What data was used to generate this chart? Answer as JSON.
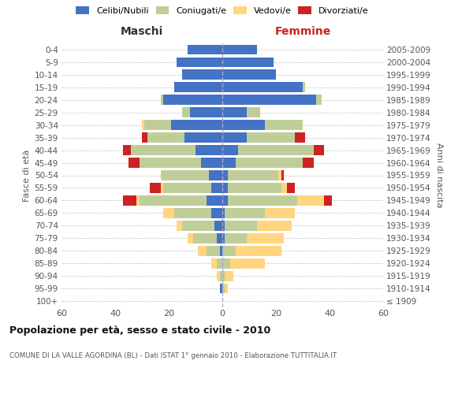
{
  "age_groups": [
    "100+",
    "95-99",
    "90-94",
    "85-89",
    "80-84",
    "75-79",
    "70-74",
    "65-69",
    "60-64",
    "55-59",
    "50-54",
    "45-49",
    "40-44",
    "35-39",
    "30-34",
    "25-29",
    "20-24",
    "15-19",
    "10-14",
    "5-9",
    "0-4"
  ],
  "birth_years": [
    "≤ 1909",
    "1910-1914",
    "1915-1919",
    "1920-1924",
    "1925-1929",
    "1930-1934",
    "1935-1939",
    "1940-1944",
    "1945-1949",
    "1950-1954",
    "1955-1959",
    "1960-1964",
    "1965-1969",
    "1970-1974",
    "1975-1979",
    "1980-1984",
    "1985-1989",
    "1990-1994",
    "1995-1999",
    "2000-2004",
    "2005-2009"
  ],
  "male": {
    "celibi": [
      0,
      1,
      0,
      0,
      1,
      2,
      3,
      4,
      6,
      4,
      5,
      8,
      10,
      14,
      19,
      12,
      22,
      18,
      15,
      17,
      13
    ],
    "coniugati": [
      0,
      0,
      1,
      2,
      5,
      9,
      12,
      14,
      25,
      18,
      18,
      23,
      24,
      14,
      10,
      3,
      1,
      0,
      0,
      0,
      0
    ],
    "vedovi": [
      0,
      0,
      1,
      2,
      3,
      2,
      2,
      4,
      1,
      1,
      0,
      0,
      0,
      0,
      1,
      0,
      0,
      0,
      0,
      0,
      0
    ],
    "divorziati": [
      0,
      0,
      0,
      0,
      0,
      0,
      0,
      0,
      5,
      4,
      0,
      4,
      3,
      2,
      0,
      0,
      0,
      0,
      0,
      0,
      0
    ]
  },
  "female": {
    "nubili": [
      0,
      0,
      0,
      0,
      0,
      1,
      1,
      1,
      2,
      2,
      2,
      5,
      6,
      9,
      16,
      9,
      35,
      30,
      20,
      19,
      13
    ],
    "coniugate": [
      0,
      1,
      1,
      3,
      5,
      8,
      12,
      15,
      26,
      20,
      19,
      25,
      28,
      18,
      14,
      5,
      2,
      1,
      0,
      0,
      0
    ],
    "vedove": [
      0,
      1,
      3,
      13,
      17,
      14,
      13,
      11,
      10,
      2,
      1,
      0,
      0,
      0,
      0,
      0,
      0,
      0,
      0,
      0,
      0
    ],
    "divorziate": [
      0,
      0,
      0,
      0,
      0,
      0,
      0,
      0,
      3,
      3,
      1,
      4,
      4,
      4,
      0,
      0,
      0,
      0,
      0,
      0,
      0
    ]
  },
  "colors": {
    "celibi": "#4472C4",
    "coniugati": "#BFCE99",
    "vedovi": "#FFD580",
    "divorziati": "#CC2222"
  },
  "xlim": 60,
  "title": "Popolazione per età, sesso e stato civile - 2010",
  "subtitle": "COMUNE DI LA VALLE AGORDINA (BL) - Dati ISTAT 1° gennaio 2010 - Elaborazione TUTTITALIA.IT",
  "legend_labels": [
    "Celibi/Nubili",
    "Coniugati/e",
    "Vedovi/e",
    "Divorziati/e"
  ],
  "xlabel_left": "Maschi",
  "xlabel_right": "Femmine",
  "ylabel_left": "Fasce di età",
  "ylabel_right": "Anni di nascita"
}
